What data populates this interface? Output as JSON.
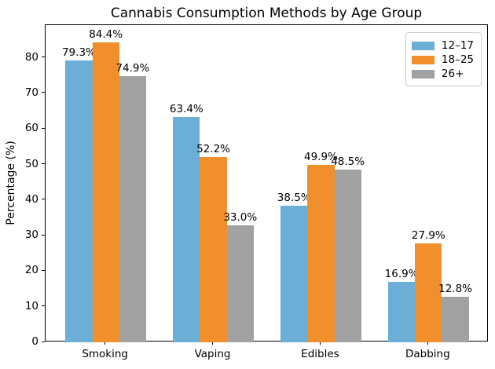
{
  "chart_data": {
    "type": "bar",
    "title": "Cannabis Consumption Methods by Age Group",
    "categories": [
      "Smoking",
      "Vaping",
      "Edibles",
      "Dabbing"
    ],
    "series": [
      {
        "name": "12–17",
        "color": "#6baed6",
        "values": [
          79.3,
          63.4,
          38.5,
          16.9
        ]
      },
      {
        "name": "18–25",
        "color": "#f18f2c",
        "values": [
          84.4,
          52.2,
          49.9,
          27.9
        ]
      },
      {
        "name": "26+",
        "color": "#a1a1a1",
        "values": [
          74.9,
          33.0,
          48.5,
          12.8
        ]
      }
    ],
    "xlabel": "",
    "ylabel": "Percentage (%)",
    "ylim": [
      0,
      89.2
    ],
    "yticks": [
      0,
      10,
      20,
      30,
      40,
      50,
      60,
      70,
      80
    ],
    "value_label_format": "{value}%",
    "grid": false,
    "legend_position": "upper right",
    "background_color": "#ffffff",
    "text_color": "#000000"
  }
}
